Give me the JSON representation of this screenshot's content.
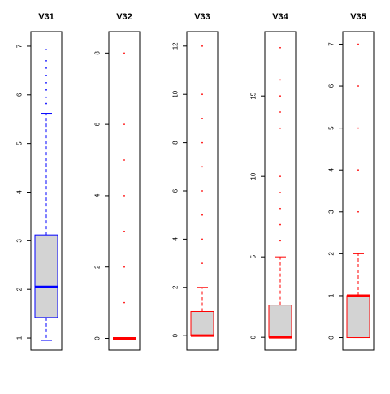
{
  "chart_data": [
    {
      "type": "boxplot",
      "title": "V31",
      "color": "#0000ff",
      "ylim": [
        0.75,
        7.3
      ],
      "yticks": [
        1,
        2,
        3,
        4,
        5,
        6,
        7
      ],
      "box": {
        "whisker_low": 0.95,
        "q1": 1.42,
        "median": 2.05,
        "q3": 3.12,
        "whisker_high": 5.62
      },
      "outliers": [
        5.82,
        5.95,
        6.1,
        6.25,
        6.4,
        6.55,
        6.7,
        6.93
      ]
    },
    {
      "type": "boxplot",
      "title": "V32",
      "color": "#ff0000",
      "ylim": [
        -0.33,
        8.6
      ],
      "yticks": [
        0,
        2,
        4,
        6,
        8
      ],
      "box": {
        "whisker_low": 0,
        "q1": 0,
        "median": 0,
        "q3": 0,
        "whisker_high": 0
      },
      "outliers": [
        1,
        2,
        3,
        4,
        5,
        6,
        8
      ]
    },
    {
      "type": "boxplot",
      "title": "V33",
      "color": "#ff0000",
      "ylim": [
        -0.6,
        12.6
      ],
      "yticks": [
        0,
        2,
        4,
        6,
        8,
        10,
        12
      ],
      "box": {
        "whisker_low": 0,
        "q1": 0,
        "median": 0,
        "q3": 1,
        "whisker_high": 2
      },
      "outliers": [
        3,
        4,
        5,
        6,
        7,
        8,
        9,
        10,
        12
      ]
    },
    {
      "type": "boxplot",
      "title": "V34",
      "color": "#ff0000",
      "ylim": [
        -0.8,
        19
      ],
      "yticks": [
        0,
        5,
        10,
        15
      ],
      "box": {
        "whisker_low": 0,
        "q1": 0,
        "median": 0,
        "q3": 2,
        "whisker_high": 5
      },
      "outliers": [
        6,
        7,
        8,
        9,
        10,
        13,
        14,
        15,
        16,
        18
      ]
    },
    {
      "type": "boxplot",
      "title": "V35",
      "color": "#ff0000",
      "ylim": [
        -0.3,
        7.3
      ],
      "yticks": [
        0,
        1,
        2,
        3,
        4,
        5,
        6,
        7
      ],
      "box": {
        "whisker_low": 0,
        "q1": 0,
        "median": 1,
        "q3": 1,
        "whisker_high": 2
      },
      "outliers": [
        3,
        4,
        5,
        6,
        7
      ]
    }
  ]
}
